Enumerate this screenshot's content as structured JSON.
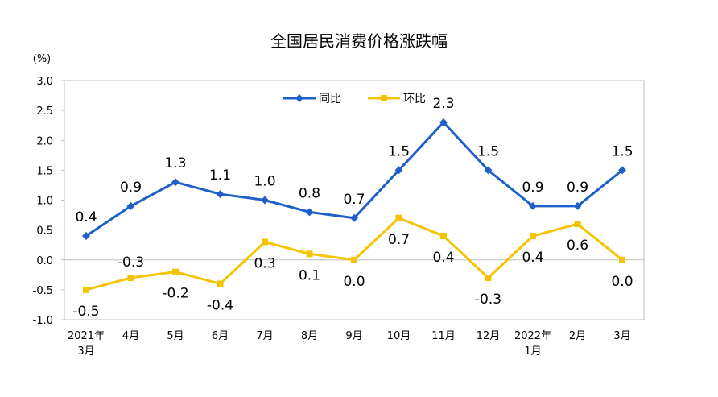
{
  "chart_data": {
    "type": "line",
    "title": "全国居民消费价格涨跌幅",
    "unit_label": "(%)",
    "categories": [
      [
        "2021年",
        "3月"
      ],
      [
        "4月"
      ],
      [
        "5月"
      ],
      [
        "6月"
      ],
      [
        "7月"
      ],
      [
        "8月"
      ],
      [
        "9月"
      ],
      [
        "10月"
      ],
      [
        "11月"
      ],
      [
        "12月"
      ],
      [
        "2022年",
        "1月"
      ],
      [
        "2月"
      ],
      [
        "3月"
      ]
    ],
    "ylim": [
      -1.0,
      3.0
    ],
    "yticks": [
      "3.0",
      "2.5",
      "2.0",
      "1.5",
      "1.0",
      "0.5",
      "0.0",
      "-0.5",
      "-1.0"
    ],
    "ytick_values": [
      3.0,
      2.5,
      2.0,
      1.5,
      1.0,
      0.5,
      0.0,
      -0.5,
      -1.0
    ],
    "grid": false,
    "legend_position": "top-center",
    "series": [
      {
        "name": "同比",
        "color": "#1f5fc8",
        "marker": "diamond",
        "values": [
          0.4,
          0.9,
          1.3,
          1.1,
          1.0,
          0.8,
          0.7,
          1.5,
          2.3,
          1.5,
          0.9,
          0.9,
          1.5
        ],
        "labels": [
          "0.4",
          "0.9",
          "1.3",
          "1.1",
          "1.0",
          "0.8",
          "0.7",
          "1.5",
          "2.3",
          "1.5",
          "0.9",
          "0.9",
          "1.5"
        ]
      },
      {
        "name": "环比",
        "color": "#f5c400",
        "marker": "square",
        "values": [
          -0.5,
          -0.3,
          -0.2,
          -0.4,
          0.3,
          0.1,
          0.0,
          0.7,
          0.4,
          -0.3,
          0.4,
          0.6,
          0.0
        ],
        "labels": [
          "-0.5",
          "-0.3",
          "-0.2",
          "-0.4",
          "0.3",
          "0.1",
          "0.0",
          "0.7",
          "0.4",
          "-0.3",
          "0.4",
          "0.6",
          "0.0"
        ]
      }
    ]
  }
}
